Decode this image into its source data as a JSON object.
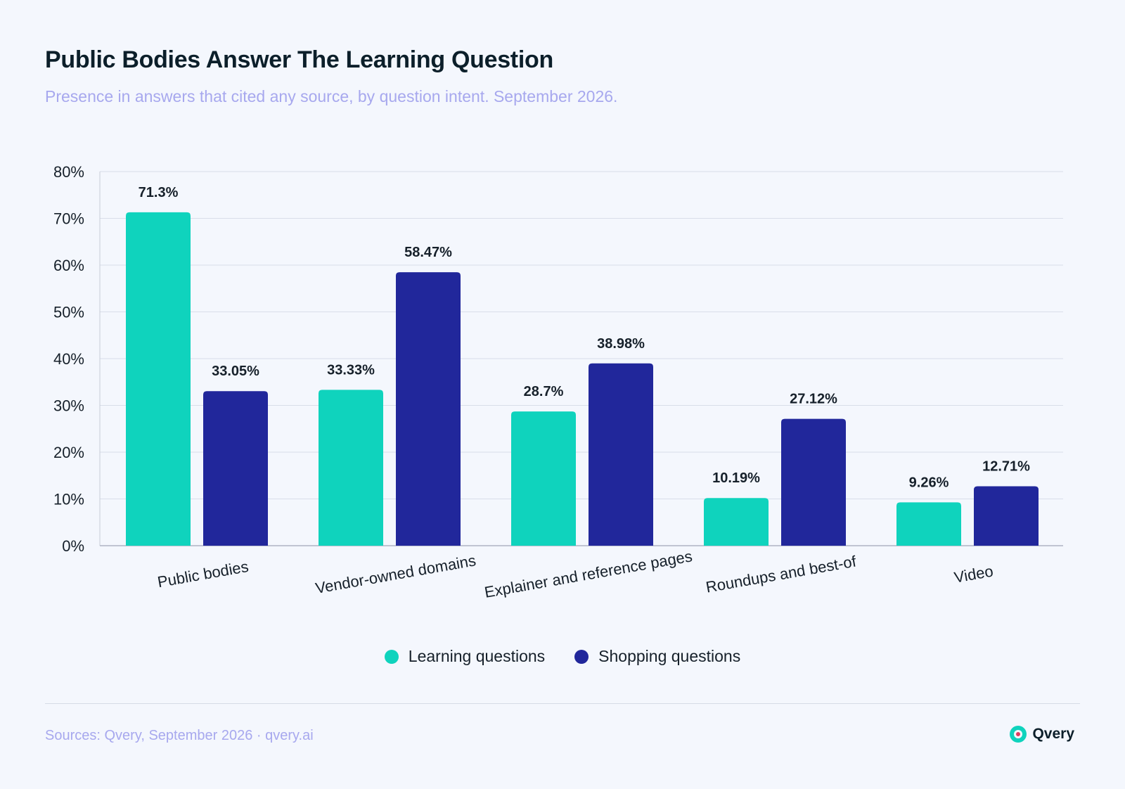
{
  "header": {
    "title": "Public Bodies Answer The Learning Question",
    "subtitle": "Presence in answers that cited any source, by question intent. September 2026."
  },
  "chart_data": {
    "type": "bar",
    "categories": [
      "Public bodies",
      "Vendor-owned domains",
      "Explainer and reference pages",
      "Roundups and best-of",
      "Video"
    ],
    "series": [
      {
        "name": "Learning questions",
        "color": "#0fd3bd",
        "values": [
          71.3,
          33.33,
          28.7,
          10.19,
          9.26
        ],
        "labels": [
          "71.3%",
          "33.33%",
          "28.7%",
          "10.19%",
          "9.26%"
        ]
      },
      {
        "name": "Shopping questions",
        "color": "#21279b",
        "values": [
          33.05,
          58.47,
          38.98,
          27.12,
          12.71
        ],
        "labels": [
          "33.05%",
          "58.47%",
          "38.98%",
          "27.12%",
          "12.71%"
        ]
      }
    ],
    "yticks": [
      "0%",
      "10%",
      "20%",
      "30%",
      "40%",
      "50%",
      "60%",
      "70%",
      "80%"
    ],
    "ylim": [
      0,
      80
    ],
    "grid": true,
    "legend_position": "bottom-center"
  },
  "footer": {
    "source": "Sources: Qvery, September 2026 · qvery.ai",
    "brand": "Qvery",
    "brand_icon": "qvery-logo-icon"
  }
}
